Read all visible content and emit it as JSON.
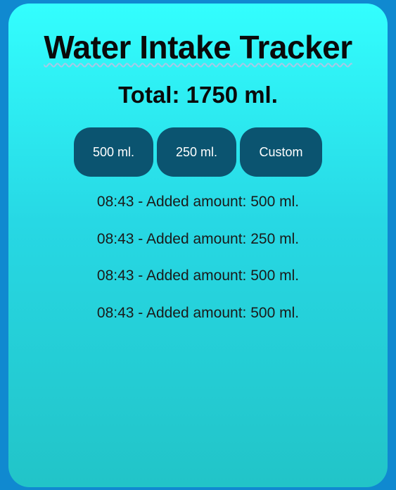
{
  "header": {
    "title": "Water Intake Tracker"
  },
  "total": {
    "text": "Total: 1750 ml."
  },
  "buttons": {
    "b500": "500 ml.",
    "b250": "250 ml.",
    "custom": "Custom"
  },
  "log": [
    "08:43 - Added amount: 500 ml.",
    "08:43 - Added amount: 250 ml.",
    "08:43 - Added amount: 500 ml.",
    "08:43 - Added amount: 500 ml."
  ],
  "colors": {
    "page_background": "#1089d0",
    "card_gradient_top": "#33fefe",
    "card_gradient_bottom": "#22c4c8",
    "button_background": "#0b5470",
    "button_text": "#ffffff"
  }
}
